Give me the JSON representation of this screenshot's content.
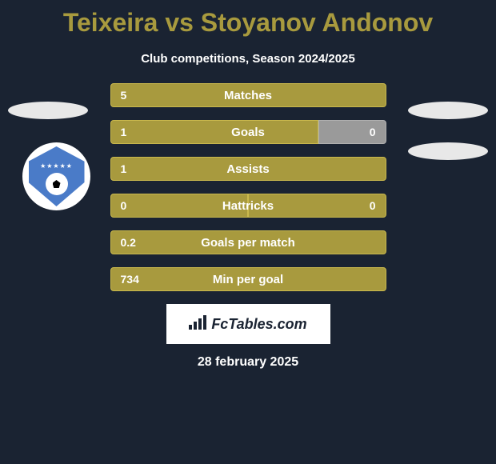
{
  "title": "Teixeira vs Stoyanov Andonov",
  "subtitle": "Club competitions, Season 2024/2025",
  "date": "28 february 2025",
  "fctables_label": "FcTables.com",
  "colors": {
    "background": "#1a2332",
    "accent": "#a89a3e",
    "accent_border": "#c9b84d",
    "grey_bar": "#9a9a9a",
    "grey_bar_border": "#b0b0b0",
    "badge_bg": "#e8e8e8",
    "logo_blue": "#4a7bc8",
    "text": "#ffffff"
  },
  "stats": [
    {
      "label": "Matches",
      "left_value": "5",
      "left_width": 345,
      "right_value": "",
      "right_width": 0,
      "right_grey": false
    },
    {
      "label": "Goals",
      "left_value": "1",
      "left_width": 260,
      "right_value": "0",
      "right_width": 85,
      "right_grey": true
    },
    {
      "label": "Assists",
      "left_value": "1",
      "left_width": 345,
      "right_value": "",
      "right_width": 0,
      "right_grey": false
    },
    {
      "label": "Hattricks",
      "left_value": "0",
      "left_width": 172,
      "right_value": "0",
      "right_width": 173,
      "right_grey": false
    },
    {
      "label": "Goals per match",
      "left_value": "0.2",
      "left_width": 345,
      "right_value": "",
      "right_width": 0,
      "right_grey": false
    },
    {
      "label": "Min per goal",
      "left_value": "734",
      "left_width": 345,
      "right_value": "",
      "right_width": 0,
      "right_grey": false
    }
  ]
}
